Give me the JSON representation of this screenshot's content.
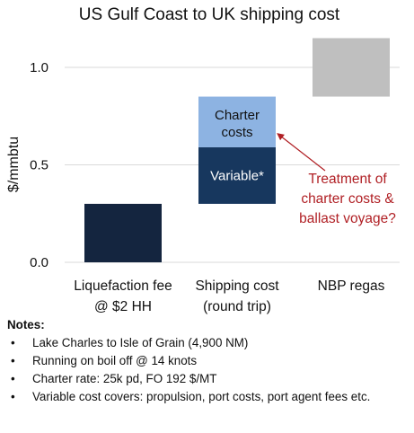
{
  "chart_data": {
    "type": "bar",
    "title": "US Gulf Coast to UK shipping cost",
    "ylabel": "$/mmbtu",
    "ylim": [
      0,
      1.15
    ],
    "yticks": [
      "0.0",
      "0.5",
      "1.0"
    ],
    "ytick_values": [
      0,
      0.5,
      1.0
    ],
    "grid": true,
    "categories": [
      {
        "line1": "Liquefaction fee",
        "line2": "@ $2 HH"
      },
      {
        "line1": "Shipping cost",
        "line2": "(round trip)"
      },
      {
        "line1": "NBP regas",
        "line2": ""
      }
    ],
    "segments": [
      {
        "category": 0,
        "bottom": 0.0,
        "top": 0.3,
        "color": "#14253f",
        "label": "",
        "label2": "",
        "label_color": "#ffffff"
      },
      {
        "category": 1,
        "bottom": 0.3,
        "top": 0.59,
        "color": "#17375e",
        "label": "Variable*",
        "label2": "",
        "label_color": "#ffffff"
      },
      {
        "category": 1,
        "bottom": 0.59,
        "top": 0.85,
        "color": "#8db3e2",
        "label": "Charter",
        "label2": "costs",
        "label_color": "#111111"
      },
      {
        "category": 2,
        "bottom": 0.85,
        "top": 1.15,
        "color": "#bfbfbf",
        "label": "",
        "label2": "",
        "label_color": "#111111"
      }
    ],
    "annotation": {
      "lines": [
        "Treatment of",
        "charter costs &",
        "ballast voyage?"
      ],
      "color": "#b01f24",
      "points_to_value": 0.66,
      "points_to_category": 1
    }
  },
  "notes": {
    "heading": "Notes:",
    "items": [
      "Lake Charles to Isle of Grain (4,900 NM)",
      "Running on boil off @ 14 knots",
      "Charter rate: 25k pd, FO 192 $/MT",
      "Variable cost covers: propulsion, port costs, port agent fees etc."
    ]
  }
}
